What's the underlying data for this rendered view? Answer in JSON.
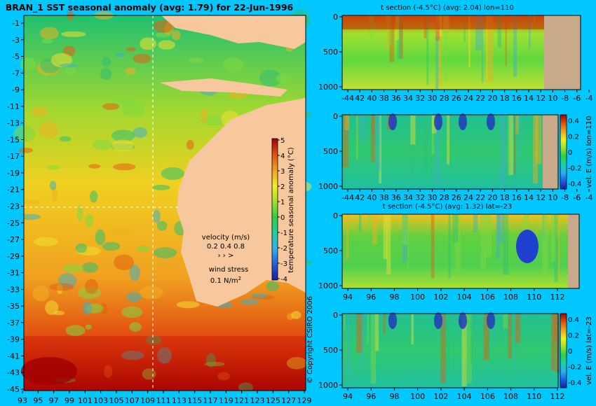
{
  "main_title": "BRAN_1 SST seasonal anomaly (avg: 1.79) for 22-Jun-1996",
  "copyright": "© Copyright CSIRO 2006",
  "colors": {
    "background": "#00c8ff",
    "land": "#f7c79e",
    "section_land": "#c8a989"
  },
  "colormap": [
    "#1a1aa0",
    "#2060e0",
    "#30b0f0",
    "#20d0a0",
    "#30d040",
    "#a0e030",
    "#f0f020",
    "#f0a020",
    "#e05010",
    "#a00000"
  ],
  "map": {
    "type": "heatmap",
    "x_ticks": [
      "93",
      "95",
      "97",
      "99",
      "101",
      "103",
      "105",
      "107",
      "109",
      "111",
      "113",
      "115",
      "117",
      "119",
      "121",
      "123",
      "125",
      "127",
      "129"
    ],
    "y_ticks": [
      "-1",
      "-3",
      "-5",
      "-7",
      "-9",
      "-11",
      "-13",
      "-15",
      "-17",
      "-19",
      "-21",
      "-23",
      "-25",
      "-27",
      "-29",
      "-31",
      "-33",
      "-35",
      "-37",
      "-39",
      "-41",
      "-43",
      "-45"
    ],
    "colorbar": {
      "label": "temperature seasonal anomaly (°C)",
      "ticks": [
        "5",
        "4",
        "3",
        "2",
        "1",
        "0",
        "-1",
        "-2",
        "-3",
        "-4"
      ],
      "range": [
        -4,
        5
      ]
    },
    "velocity_legend": {
      "title": "velocity (m/s)",
      "values": "0.2 0.4 0.8",
      "wind_title": "wind stress",
      "wind_value": "0.1 N/m",
      "wind_exp": "2"
    }
  },
  "panels": [
    {
      "title": "t section (-4.5°C) (avg: 2.04) lon=110",
      "x_ticks": [
        "-44",
        "42",
        "40",
        "38",
        "36",
        "34",
        "32",
        "30",
        "28",
        "26",
        "24",
        "22",
        "20",
        "18",
        "16",
        "14",
        "12",
        "10",
        "-8",
        "-6",
        "-4"
      ],
      "y_ticks": [
        "0",
        "500",
        "1000"
      ],
      "has_colorbar": false
    },
    {
      "title": "",
      "x_ticks": [
        "-44",
        "42",
        "40",
        "38",
        "36",
        "34",
        "32",
        "30",
        "28",
        "26",
        "24",
        "22",
        "20",
        "18",
        "16",
        "14",
        "12",
        "10",
        "-8",
        "-6",
        "-4"
      ],
      "y_ticks": [
        "0",
        "500",
        "1000"
      ],
      "has_colorbar": true,
      "colorbar_label": "vel. E (m/s) lon=110",
      "colorbar_ticks": [
        "0.4",
        "0.2",
        "0",
        "-0.2",
        "-0.4"
      ]
    },
    {
      "title": "t section (-4.5°C) (avg: 1.32) lat=-23",
      "x_ticks": [
        "94",
        "96",
        "98",
        "100",
        "102",
        "104",
        "106",
        "108",
        "110",
        "112"
      ],
      "y_ticks": [
        "0",
        "500",
        "1000"
      ],
      "has_colorbar": false
    },
    {
      "title": "",
      "x_ticks": [
        "94",
        "96",
        "98",
        "100",
        "102",
        "104",
        "106",
        "108",
        "110",
        "112"
      ],
      "y_ticks": [
        "0",
        "500",
        "1000"
      ],
      "has_colorbar": true,
      "colorbar_label": "vel. E (m/s) lat=-23",
      "colorbar_ticks": [
        "0.4",
        "0.2",
        "0",
        "-0.2",
        "-0.4"
      ]
    }
  ]
}
